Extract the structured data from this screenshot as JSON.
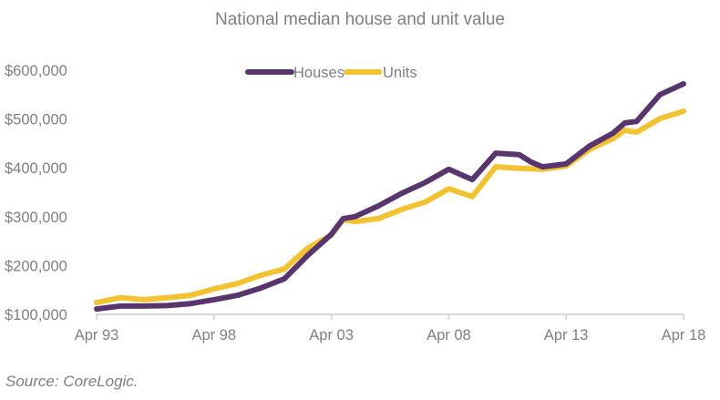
{
  "chart_data": {
    "type": "line",
    "title": "National median house and unit value",
    "xlabel": "",
    "ylabel": "",
    "ylim": [
      100000,
      600000
    ],
    "y_ticks": [
      100000,
      200000,
      300000,
      400000,
      500000,
      600000
    ],
    "y_tick_labels": [
      "$100,000",
      "$200,000",
      "$300,000",
      "$400,000",
      "$500,000",
      "$600,000"
    ],
    "x_range": [
      1993.25,
      2018.25
    ],
    "x_ticks": [
      1993.25,
      1998.25,
      2003.25,
      2008.25,
      2013.25,
      2018.25
    ],
    "x_tick_labels": [
      "Apr 93",
      "Apr 98",
      "Apr 03",
      "Apr 08",
      "Apr 13",
      "Apr 18"
    ],
    "grid": false,
    "legend_position": "top-center",
    "x": [
      1993.25,
      1994.25,
      1995.25,
      1996.25,
      1997.25,
      1998.25,
      1999.25,
      2000.25,
      2001.25,
      2002.25,
      2003.25,
      2003.75,
      2004.25,
      2005.25,
      2006.25,
      2007.25,
      2008.25,
      2009.25,
      2010.25,
      2011.25,
      2011.75,
      2012.25,
      2013.25,
      2014.25,
      2015.25,
      2015.75,
      2016.25,
      2017.25,
      2018.25
    ],
    "series": [
      {
        "name": "Houses",
        "color": "#59356e",
        "values": [
          111000,
          117000,
          117000,
          118000,
          122000,
          130000,
          139000,
          154000,
          173000,
          221000,
          264000,
          296000,
          300000,
          322000,
          348000,
          370000,
          397000,
          376000,
          430000,
          427000,
          412000,
          402000,
          408000,
          445000,
          471000,
          492000,
          495000,
          550000,
          572000
        ]
      },
      {
        "name": "Units",
        "color": "#f2c232",
        "values": [
          124000,
          134000,
          130000,
          134000,
          139000,
          152000,
          163000,
          180000,
          193000,
          236000,
          262000,
          294000,
          290000,
          296000,
          315000,
          330000,
          357000,
          341000,
          402000,
          399000,
          398000,
          397000,
          404000,
          438000,
          460000,
          477000,
          473000,
          501000,
          516000
        ]
      }
    ]
  },
  "source": "Source: CoreLogic."
}
